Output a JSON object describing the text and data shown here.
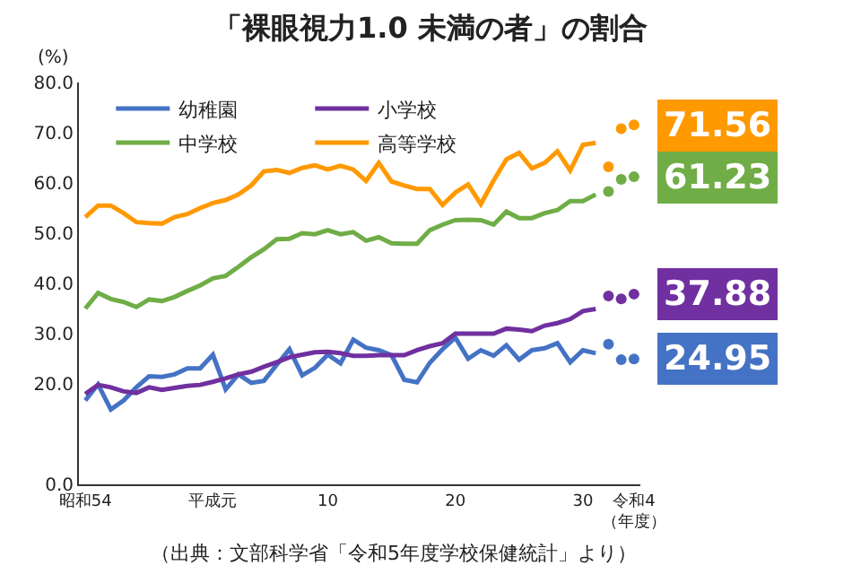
{
  "chart_data": {
    "type": "line",
    "title": "「裸眼視力1.0 未満の者」の割合",
    "ylabel": "(%)",
    "annotations": [
      "（出典：文部科学省「令和5年度学校保健統計」より）"
    ],
    "categories": [
      "昭和54",
      null,
      null,
      null,
      null,
      null,
      null,
      null,
      null,
      null,
      "平成元",
      null,
      null,
      null,
      null,
      null,
      null,
      null,
      null,
      "10",
      null,
      null,
      null,
      null,
      null,
      null,
      null,
      null,
      null,
      "20",
      null,
      null,
      null,
      null,
      null,
      null,
      null,
      null,
      null,
      "30",
      null,
      null,
      null,
      "令和4（年度）"
    ],
    "ylim": [
      0,
      80
    ],
    "yticks": [
      {
        "value": 0,
        "label": "0.0"
      },
      {
        "value": 20,
        "label": "20.0"
      },
      {
        "value": 30,
        "label": "30.0"
      },
      {
        "value": 40,
        "label": "40.0"
      },
      {
        "value": 50,
        "label": "50.0"
      },
      {
        "value": 60,
        "label": "60.0"
      },
      {
        "value": 70,
        "label": "70.0"
      },
      {
        "value": 80,
        "label": "80.0"
      }
    ],
    "legend": "top left",
    "line_style": "solid",
    "marker": "none",
    "series": [
      {
        "name": "幼稚園",
        "color": "#4472c4",
        "values": [
          16.7,
          19.9,
          14.9,
          16.7,
          19.3,
          21.5,
          21.4,
          21.9,
          23.1,
          23.1,
          25.8,
          18.9,
          21.9,
          20.2,
          20.6,
          23.8,
          26.9,
          21.7,
          23.2,
          25.8,
          24.1,
          28.8,
          27.2,
          26.7,
          25.7,
          20.8,
          20.3,
          24.2,
          26.9,
          29.2,
          25.0,
          26.7,
          25.6,
          27.7,
          24.8,
          26.7,
          27.1,
          28.1,
          24.3,
          26.7,
          26.1,
          null,
          null,
          null
        ]
      },
      {
        "name": "小学校",
        "color": "#7030a0",
        "values": [
          18.0,
          19.8,
          19.3,
          18.5,
          18.2,
          19.3,
          18.8,
          19.2,
          19.6,
          19.8,
          20.4,
          21.1,
          21.9,
          22.4,
          23.4,
          24.3,
          25.3,
          25.8,
          26.3,
          26.4,
          26.1,
          25.6,
          25.6,
          25.7,
          25.7,
          25.7,
          26.7,
          27.5,
          28.1,
          30.0,
          30.0,
          30.0,
          30.0,
          31.0,
          30.8,
          30.5,
          31.6,
          32.1,
          32.9,
          34.5,
          34.9,
          null,
          null,
          null
        ]
      },
      {
        "name": "中学校",
        "color": "#70ad47",
        "values": [
          35.0,
          38.1,
          36.9,
          36.3,
          35.3,
          36.8,
          36.5,
          37.3,
          38.5,
          39.6,
          41.0,
          41.5,
          43.3,
          45.2,
          46.8,
          48.8,
          48.9,
          50.0,
          49.8,
          50.6,
          49.8,
          50.2,
          48.5,
          49.2,
          48.0,
          47.9,
          47.9,
          50.6,
          51.7,
          52.6,
          52.7,
          52.6,
          51.7,
          54.3,
          53.0,
          53.0,
          54.0,
          54.6,
          56.4,
          56.4,
          57.7,
          null,
          null,
          null
        ]
      },
      {
        "name": "高等学校",
        "color": "#ff9900",
        "values": [
          53.2,
          55.5,
          55.5,
          54.0,
          52.2,
          52.0,
          51.9,
          53.2,
          53.8,
          55.0,
          56.0,
          56.6,
          57.7,
          59.5,
          62.3,
          62.6,
          62.0,
          63.0,
          63.5,
          62.7,
          63.4,
          62.7,
          60.4,
          64.0,
          60.3,
          59.5,
          58.8,
          58.8,
          55.6,
          58.1,
          59.7,
          55.8,
          60.5,
          64.7,
          66.0,
          62.9,
          64.0,
          66.3,
          62.5,
          67.6,
          68.0,
          null,
          null,
          null
        ]
      },
      {
        "type": "scatter",
        "marker": "circle",
        "color": "#4472c4",
        "values": [
          null,
          null,
          null,
          null,
          null,
          null,
          null,
          null,
          null,
          null,
          null,
          null,
          null,
          null,
          null,
          null,
          null,
          null,
          null,
          null,
          null,
          null,
          null,
          null,
          null,
          null,
          null,
          null,
          null,
          null,
          null,
          null,
          null,
          null,
          null,
          null,
          null,
          null,
          null,
          null,
          null,
          27.9,
          24.8,
          24.95
        ],
        "value_labels": [
          null,
          null,
          null,
          null,
          null,
          null,
          null,
          null,
          null,
          null,
          null,
          null,
          null,
          null,
          null,
          null,
          null,
          null,
          null,
          null,
          null,
          null,
          null,
          null,
          null,
          null,
          null,
          null,
          null,
          null,
          null,
          null,
          null,
          null,
          null,
          null,
          null,
          null,
          null,
          null,
          null,
          null,
          null,
          "24.95"
        ]
      },
      {
        "type": "scatter",
        "marker": "circle",
        "color": "#7030a0",
        "values": [
          null,
          null,
          null,
          null,
          null,
          null,
          null,
          null,
          null,
          null,
          null,
          null,
          null,
          null,
          null,
          null,
          null,
          null,
          null,
          null,
          null,
          null,
          null,
          null,
          null,
          null,
          null,
          null,
          null,
          null,
          null,
          null,
          null,
          null,
          null,
          null,
          null,
          null,
          null,
          null,
          null,
          37.5,
          36.9,
          37.88
        ],
        "value_labels": [
          null,
          null,
          null,
          null,
          null,
          null,
          null,
          null,
          null,
          null,
          null,
          null,
          null,
          null,
          null,
          null,
          null,
          null,
          null,
          null,
          null,
          null,
          null,
          null,
          null,
          null,
          null,
          null,
          null,
          null,
          null,
          null,
          null,
          null,
          null,
          null,
          null,
          null,
          null,
          null,
          null,
          null,
          null,
          "37.88"
        ]
      },
      {
        "type": "scatter",
        "marker": "circle",
        "color": "#70ad47",
        "values": [
          null,
          null,
          null,
          null,
          null,
          null,
          null,
          null,
          null,
          null,
          null,
          null,
          null,
          null,
          null,
          null,
          null,
          null,
          null,
          null,
          null,
          null,
          null,
          null,
          null,
          null,
          null,
          null,
          null,
          null,
          null,
          null,
          null,
          null,
          null,
          null,
          null,
          null,
          null,
          null,
          null,
          58.3,
          60.7,
          61.23
        ],
        "value_labels": [
          null,
          null,
          null,
          null,
          null,
          null,
          null,
          null,
          null,
          null,
          null,
          null,
          null,
          null,
          null,
          null,
          null,
          null,
          null,
          null,
          null,
          null,
          null,
          null,
          null,
          null,
          null,
          null,
          null,
          null,
          null,
          null,
          null,
          null,
          null,
          null,
          null,
          null,
          null,
          null,
          null,
          null,
          null,
          "61.23"
        ]
      },
      {
        "type": "scatter",
        "marker": "circle",
        "color": "#ff9900",
        "values": [
          null,
          null,
          null,
          null,
          null,
          null,
          null,
          null,
          null,
          null,
          null,
          null,
          null,
          null,
          null,
          null,
          null,
          null,
          null,
          null,
          null,
          null,
          null,
          null,
          null,
          null,
          null,
          null,
          null,
          null,
          null,
          null,
          null,
          null,
          null,
          null,
          null,
          null,
          null,
          null,
          null,
          63.2,
          70.8,
          71.56
        ],
        "value_labels": [
          null,
          null,
          null,
          null,
          null,
          null,
          null,
          null,
          null,
          null,
          null,
          null,
          null,
          null,
          null,
          null,
          null,
          null,
          null,
          null,
          null,
          null,
          null,
          null,
          null,
          null,
          null,
          null,
          null,
          null,
          null,
          null,
          null,
          null,
          null,
          null,
          null,
          null,
          null,
          null,
          null,
          null,
          null,
          "71.56"
        ]
      }
    ]
  }
}
